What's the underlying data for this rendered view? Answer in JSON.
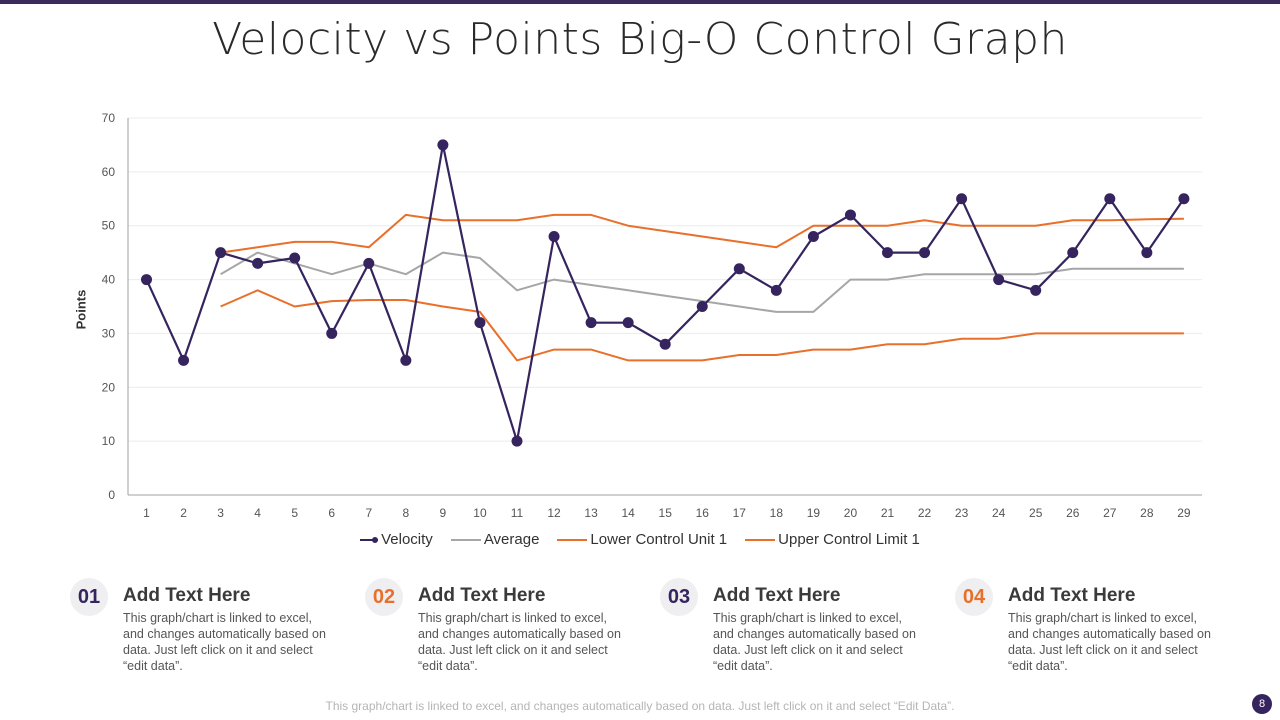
{
  "page": {
    "title": "Velocity vs Points Big-O Control Graph",
    "footer_note": "This graph/chart is linked to excel, and changes automatically based on data. Just left click on it and select “Edit Data”.",
    "page_number": "8",
    "colors": {
      "accent_purple": "#35245e",
      "accent_orange": "#e8702a",
      "average_gray": "#a6a6a6",
      "top_bar": "#3b2a5c"
    }
  },
  "cards": [
    {
      "number": "01",
      "number_color": "#35245e",
      "title": "Add Text Here",
      "body": "This graph/chart is linked to excel, and changes automatically based on data. Just left click on it and select “edit data”."
    },
    {
      "number": "02",
      "number_color": "#e8702a",
      "title": "Add Text Here",
      "body": "This graph/chart is linked to excel, and changes automatically based on data. Just left click on it and select “edit data”."
    },
    {
      "number": "03",
      "number_color": "#35245e",
      "title": "Add Text Here",
      "body": "This graph/chart is linked to excel, and changes automatically based on data. Just left click on it and select “edit data”."
    },
    {
      "number": "04",
      "number_color": "#e8702a",
      "title": "Add Text Here",
      "body": "This graph/chart is linked to excel, and changes automatically based on data. Just left click on it and select “edit data”."
    }
  ],
  "chart_data": {
    "type": "line",
    "title": "Velocity vs Points Big-O Control Graph",
    "xlabel": "",
    "ylabel": "Points",
    "ylim": [
      0,
      70
    ],
    "yticks": [
      0,
      10,
      20,
      30,
      40,
      50,
      60,
      70
    ],
    "grid": true,
    "legend_position": "bottom",
    "x": [
      1,
      2,
      3,
      4,
      5,
      6,
      7,
      8,
      9,
      10,
      11,
      12,
      13,
      14,
      15,
      16,
      17,
      18,
      19,
      20,
      21,
      22,
      23,
      24,
      25,
      26,
      27,
      28,
      29
    ],
    "series": [
      {
        "name": "Velocity",
        "color": "#35245e",
        "markers": true,
        "values": [
          40,
          25,
          45,
          43,
          44,
          30,
          43,
          25,
          65,
          32,
          10,
          48,
          32,
          32,
          28,
          35,
          42,
          38,
          48,
          52,
          45,
          45,
          55,
          40,
          38,
          45,
          55,
          45,
          55
        ]
      },
      {
        "name": "Average",
        "color": "#a6a6a6",
        "markers": false,
        "values": [
          null,
          null,
          41,
          45,
          43,
          41,
          43,
          41,
          45,
          44,
          38,
          40,
          39,
          38,
          37,
          36,
          35,
          34,
          34,
          40,
          40,
          41,
          41,
          41,
          41,
          42,
          42,
          42,
          42
        ]
      },
      {
        "name": "Lower Control Unit 1",
        "color": "#e8702a",
        "markers": false,
        "values": [
          null,
          null,
          35,
          38,
          35,
          36,
          36.2,
          36.2,
          35,
          34,
          25,
          27,
          27,
          25,
          25,
          25,
          26,
          26,
          27,
          27,
          28,
          28,
          29,
          29,
          30,
          30,
          30,
          30,
          30
        ]
      },
      {
        "name": "Upper Control Limit 1",
        "color": "#e8702a",
        "markers": false,
        "values": [
          null,
          null,
          45,
          46,
          47,
          47,
          46,
          52,
          51,
          51,
          51,
          52,
          52,
          50,
          49,
          48,
          47,
          46,
          50,
          50,
          50,
          51,
          50,
          50,
          50,
          51,
          51,
          51.2,
          51.3
        ]
      }
    ]
  }
}
